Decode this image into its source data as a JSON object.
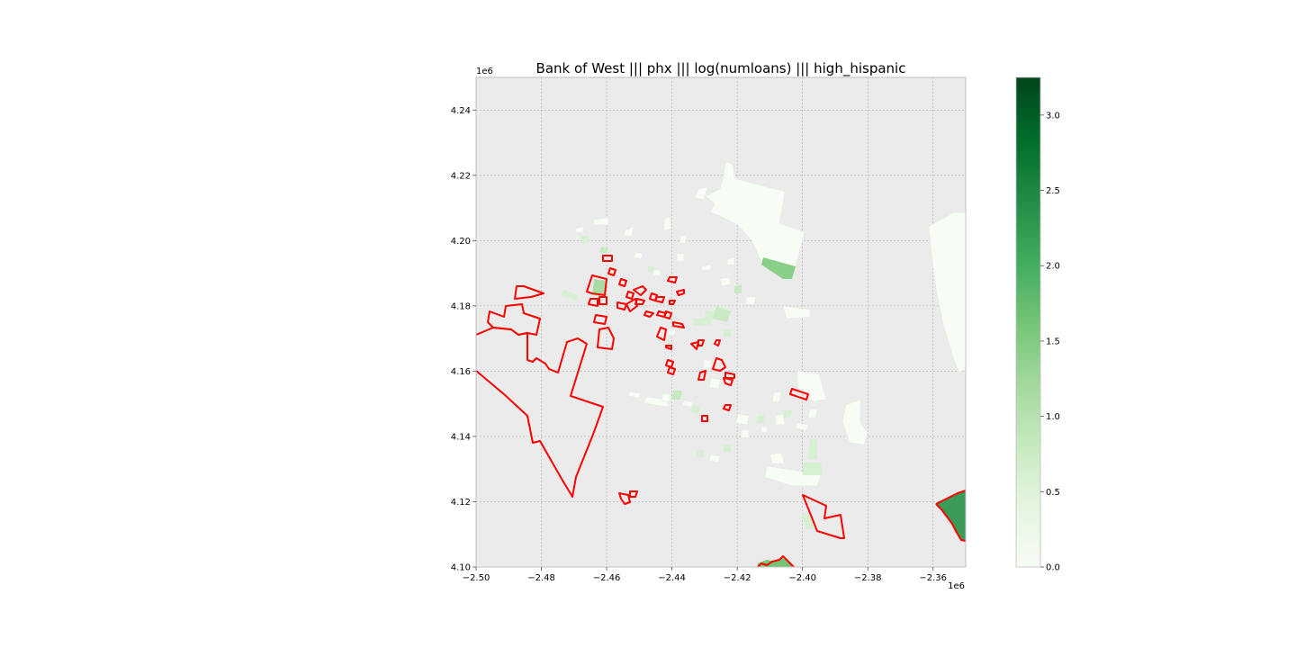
{
  "title": "Bank of West ||| phx ||| log(numloans) ||| high_hispanic",
  "axes": {
    "x_ticks": [
      "−2.50",
      "−2.48",
      "−2.46",
      "−2.44",
      "−2.42",
      "−2.40",
      "−2.38",
      "−2.36"
    ],
    "y_ticks": [
      "4.10",
      "4.12",
      "4.14",
      "4.16",
      "4.18",
      "4.20",
      "4.22",
      "4.24"
    ],
    "x_offset": "1e6",
    "y_offset": "1e6",
    "x_range": [
      -2.5,
      -2.35
    ],
    "y_range": [
      4.1,
      4.25
    ],
    "grid": true
  },
  "colorbar": {
    "ticks": [
      "0.0",
      "0.5",
      "1.0",
      "1.5",
      "2.0",
      "2.5",
      "3.0"
    ],
    "range": [
      0,
      3.25
    ],
    "colormap": "Greens"
  },
  "colors": {
    "background": "#ebebeb",
    "grid": "#b0b0b0",
    "highlight_outline": "#ff0000",
    "cmap_low": "#f7fcf5",
    "cmap_mid": "#74c476",
    "cmap_high": "#00441b"
  }
}
